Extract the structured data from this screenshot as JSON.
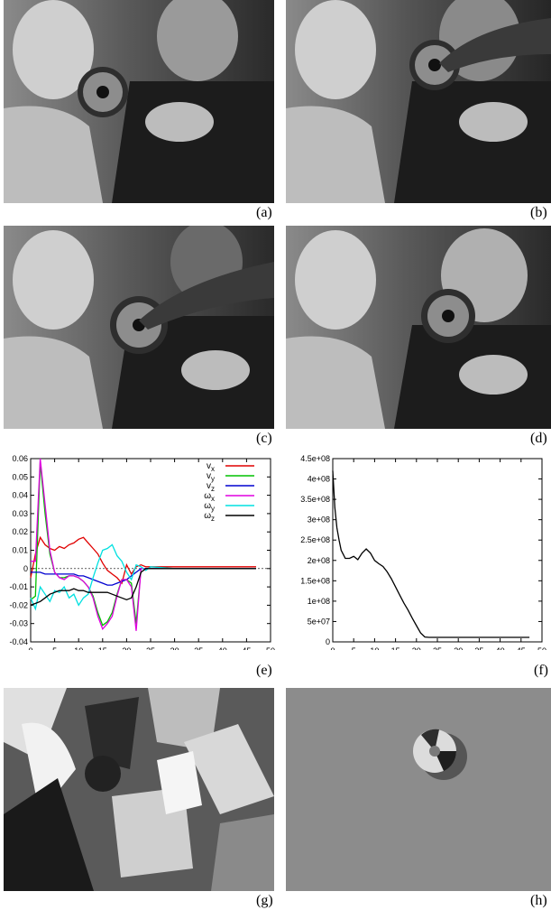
{
  "captions": [
    "(a)",
    "(b)",
    "(c)",
    "(d)",
    "(e)",
    "(f)",
    "(g)",
    "(h)"
  ],
  "chart_data": [
    {
      "type": "line",
      "title": "",
      "xlabel": "",
      "ylabel": "",
      "xlim": [
        0,
        50
      ],
      "ylim": [
        -0.04,
        0.06
      ],
      "xticks": [
        "0",
        "5",
        "10",
        "15",
        "20",
        "25",
        "30",
        "35",
        "40",
        "45",
        "50"
      ],
      "yticks": [
        "-0.04",
        "-0.03",
        "-0.02",
        "-0.01",
        "0",
        "0.01",
        "0.02",
        "0.03",
        "0.04",
        "0.05",
        "0.06"
      ],
      "legend_position": "top-right",
      "grid": false,
      "series": [
        {
          "name": "vx",
          "label_main": "v",
          "label_sub": "x",
          "color": "#e00000",
          "x": [
            0,
            1,
            2,
            3,
            4,
            5,
            6,
            7,
            8,
            9,
            10,
            11,
            12,
            13,
            14,
            15,
            16,
            17,
            18,
            19,
            20,
            21,
            22,
            23,
            24,
            25,
            30,
            35,
            40,
            45,
            47
          ],
          "y": [
            -0.005,
            0.008,
            0.017,
            0.013,
            0.011,
            0.01,
            0.012,
            0.011,
            0.013,
            0.014,
            0.016,
            0.017,
            0.014,
            0.011,
            0.008,
            0.003,
            -0.001,
            -0.003,
            -0.005,
            -0.008,
            0.002,
            -0.003,
            0.001,
            0.002,
            0.001,
            0.001,
            0.001,
            0.001,
            0.001,
            0.001,
            0.001
          ]
        },
        {
          "name": "vy",
          "label_main": "v",
          "label_sub": "y",
          "color": "#00c000",
          "x": [
            0,
            1,
            2,
            3,
            4,
            5,
            6,
            7,
            8,
            9,
            10,
            11,
            12,
            13,
            14,
            15,
            16,
            17,
            18,
            19,
            20,
            21,
            22,
            23,
            24,
            25,
            30,
            35,
            40,
            45,
            47
          ],
          "y": [
            -0.017,
            -0.015,
            0.058,
            0.03,
            0.008,
            -0.002,
            -0.005,
            -0.005,
            -0.004,
            -0.004,
            -0.005,
            -0.007,
            -0.01,
            -0.015,
            -0.024,
            -0.031,
            -0.029,
            -0.024,
            -0.014,
            -0.006,
            -0.006,
            -0.008,
            -0.03,
            0.0,
            0.0,
            0.0,
            0.0,
            0.0,
            0.0,
            0.0,
            0.0
          ]
        },
        {
          "name": "vz",
          "label_main": "v",
          "label_sub": "z",
          "color": "#0000d0",
          "x": [
            0,
            1,
            2,
            3,
            4,
            5,
            6,
            7,
            8,
            9,
            10,
            11,
            12,
            13,
            14,
            15,
            16,
            17,
            18,
            19,
            20,
            21,
            22,
            23,
            24,
            25,
            30,
            35,
            40,
            45,
            47
          ],
          "y": [
            -0.002,
            -0.002,
            -0.002,
            -0.003,
            -0.003,
            -0.003,
            -0.003,
            -0.003,
            -0.003,
            -0.003,
            -0.004,
            -0.004,
            -0.005,
            -0.006,
            -0.007,
            -0.008,
            -0.009,
            -0.009,
            -0.008,
            -0.007,
            -0.006,
            -0.004,
            -0.002,
            0.0,
            0.0,
            0.0,
            0.0,
            0.0,
            0.0,
            0.0,
            0.0
          ]
        },
        {
          "name": "wx",
          "label_main": "ω",
          "label_sub": "x",
          "color": "#e000e0",
          "x": [
            0,
            1,
            2,
            3,
            4,
            5,
            6,
            7,
            8,
            9,
            10,
            11,
            12,
            13,
            14,
            15,
            16,
            17,
            18,
            19,
            20,
            21,
            22,
            23,
            24,
            25,
            30,
            35,
            40,
            45,
            47
          ],
          "y": [
            0.004,
            0.004,
            0.06,
            0.035,
            0.01,
            -0.002,
            -0.005,
            -0.006,
            -0.004,
            -0.004,
            -0.005,
            -0.007,
            -0.01,
            -0.016,
            -0.026,
            -0.033,
            -0.03,
            -0.026,
            -0.015,
            -0.006,
            -0.006,
            -0.01,
            -0.034,
            0.0,
            0.0,
            0.0,
            0.0,
            0.0,
            0.0,
            0.0,
            0.0
          ]
        },
        {
          "name": "wy",
          "label_main": "ω",
          "label_sub": "y",
          "color": "#00e0e0",
          "x": [
            0,
            1,
            2,
            3,
            4,
            5,
            6,
            7,
            8,
            9,
            10,
            11,
            12,
            13,
            14,
            15,
            16,
            17,
            18,
            19,
            20,
            21,
            22,
            23,
            24,
            25,
            30,
            35,
            40,
            45,
            47
          ],
          "y": [
            -0.016,
            -0.022,
            -0.01,
            -0.014,
            -0.018,
            -0.012,
            -0.013,
            -0.01,
            -0.016,
            -0.014,
            -0.02,
            -0.016,
            -0.014,
            -0.005,
            0.003,
            0.01,
            0.011,
            0.013,
            0.007,
            0.004,
            -0.002,
            -0.006,
            0.002,
            0.001,
            -0.001,
            0.001,
            0.0,
            0.0,
            0.0,
            0.0,
            0.0
          ]
        },
        {
          "name": "wz",
          "label_main": "ω",
          "label_sub": "z",
          "color": "#000000",
          "x": [
            0,
            1,
            2,
            3,
            4,
            5,
            6,
            7,
            8,
            9,
            10,
            11,
            12,
            13,
            14,
            15,
            16,
            17,
            18,
            19,
            20,
            21,
            22,
            23,
            24,
            25,
            30,
            35,
            40,
            45,
            47
          ],
          "y": [
            -0.02,
            -0.019,
            -0.018,
            -0.016,
            -0.014,
            -0.013,
            -0.012,
            -0.012,
            -0.012,
            -0.011,
            -0.012,
            -0.012,
            -0.013,
            -0.013,
            -0.013,
            -0.013,
            -0.013,
            -0.014,
            -0.015,
            -0.016,
            -0.017,
            -0.016,
            -0.01,
            -0.002,
            0.0,
            0.0,
            0.0,
            0.0,
            0.0,
            0.0,
            0.0
          ]
        }
      ]
    },
    {
      "type": "line",
      "title": "",
      "xlabel": "",
      "ylabel": "",
      "xlim": [
        0,
        50
      ],
      "ylim": [
        0,
        450000000
      ],
      "xticks": [
        "0",
        "5",
        "10",
        "15",
        "20",
        "25",
        "30",
        "35",
        "40",
        "45",
        "50"
      ],
      "yticks": [
        "0",
        "5e+07",
        "1e+08",
        "1.5e+08",
        "2e+08",
        "2.5e+08",
        "3e+08",
        "3.5e+08",
        "4e+08",
        "4.5e+08"
      ],
      "grid": false,
      "series": [
        {
          "name": "",
          "color": "#000000",
          "x": [
            0,
            0.5,
            1,
            1.5,
            2,
            3,
            4,
            5,
            6,
            7,
            8,
            9,
            10,
            11,
            12,
            13,
            14,
            15,
            16,
            17,
            18,
            19,
            20,
            21,
            22,
            23,
            24,
            25,
            30,
            35,
            40,
            45,
            47
          ],
          "y": [
            420000000,
            330000000,
            280000000,
            250000000,
            225000000,
            205000000,
            205000000,
            210000000,
            202000000,
            218000000,
            228000000,
            218000000,
            200000000,
            192000000,
            185000000,
            172000000,
            155000000,
            135000000,
            115000000,
            95000000,
            78000000,
            58000000,
            40000000,
            22000000,
            12000000,
            11000000,
            11000000,
            11000000,
            11000000,
            11000000,
            11000000,
            11000000,
            11000000
          ]
        }
      ]
    }
  ]
}
